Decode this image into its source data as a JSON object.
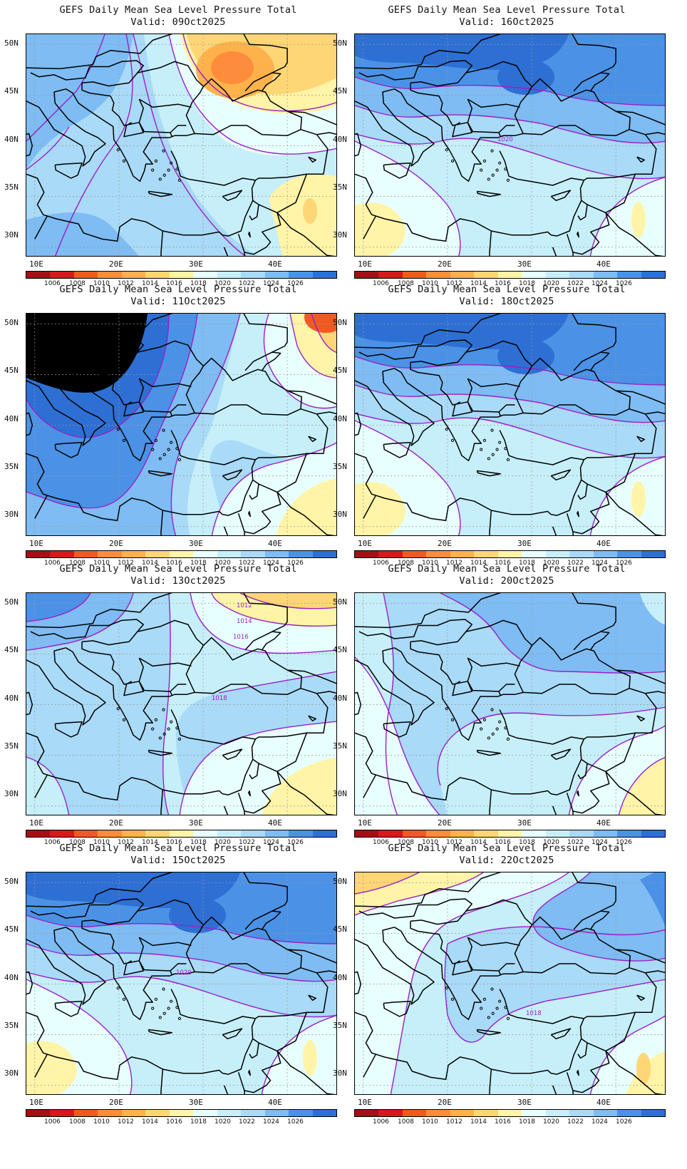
{
  "product": "GEFS Daily Mean Sea Level Pressure Total",
  "panels": [
    {
      "title": "GEFS Daily Mean Sea Level Pressure Total",
      "valid": "Valid: 09Oct2025",
      "regime": "low-north"
    },
    {
      "title": "GEFS Daily Mean Sea Level Pressure Total",
      "valid": "Valid: 16Oct2025",
      "regime": "high-north",
      "contour_label": "1020"
    },
    {
      "title": "GEFS Daily Mean Sea Level Pressure Total",
      "valid": "Valid: 11Oct2025",
      "regime": "high-west-low-ne"
    },
    {
      "title": "GEFS Daily Mean Sea Level Pressure Total",
      "valid": "Valid: 18Oct2025",
      "regime": "high-north"
    },
    {
      "title": "GEFS Daily Mean Sea Level Pressure Total",
      "valid": "Valid: 13Oct2025",
      "regime": "mixed",
      "contour_labels": [
        "1012",
        "1014",
        "1016",
        "1018"
      ]
    },
    {
      "title": "GEFS Daily Mean Sea Level Pressure Total",
      "valid": "Valid: 20Oct2025",
      "regime": "moderate-north"
    },
    {
      "title": "GEFS Daily Mean Sea Level Pressure Total",
      "valid": "Valid: 15Oct2025",
      "regime": "high-north",
      "contour_label": "1020"
    },
    {
      "title": "GEFS Daily Mean Sea Level Pressure Total",
      "valid": "Valid: 22Oct2025",
      "regime": "low-west-high-ne",
      "contour_label": "1018"
    }
  ],
  "axes": {
    "lat_labels": [
      "50N",
      "45N",
      "40N",
      "35N",
      "30N"
    ],
    "lon_labels": [
      "10E",
      "20E",
      "30E",
      "40E"
    ]
  },
  "colorbar": {
    "labels": [
      "1006",
      "1008",
      "1010",
      "1012",
      "1014",
      "1016",
      "1018",
      "1020",
      "1022",
      "1024",
      "1026"
    ],
    "colors": [
      "#a50f15",
      "#d7191c",
      "#f05a22",
      "#fd8d3c",
      "#fdb24c",
      "#fed676",
      "#fff4a8",
      "#e8ffff",
      "#c6effa",
      "#a9daf7",
      "#7ebcf3",
      "#4b92e6",
      "#2e6fd4"
    ]
  },
  "contour_color": "#9b1fc9",
  "coast_color": "#000000"
}
